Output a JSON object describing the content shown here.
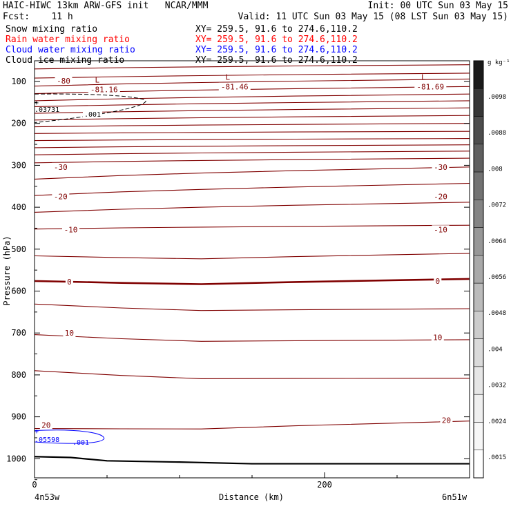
{
  "header": {
    "line1_left": "HAIC-HIWC 13km ARW-GFS init   NCAR/MMM",
    "line1_right": "Init: 00 UTC Sun 03 May 15",
    "line2_left": "Fcst:    11 h",
    "line2_right": "Valid: 11 UTC Sun 03 May 15 (08 LST Sun 03 May 15)",
    "fields": [
      {
        "name": "Snow mixing ratio",
        "xy": "XY= 259.5, 91.6 to 274.6,110.2",
        "color": "#000000"
      },
      {
        "name": "Rain water mixing ratio",
        "xy": "XY= 259.5, 91.6 to 274.6,110.2",
        "color": "#ff0000"
      },
      {
        "name": "Cloud water mixing ratio",
        "xy": "XY= 259.5, 91.6 to 274.6,110.2",
        "color": "#0000ff"
      },
      {
        "name": "Cloud ice mixing ratio",
        "xy": "XY= 259.5, 91.6 to 274.6,110.2",
        "color": "#000000"
      }
    ]
  },
  "chart_data": {
    "type": "line",
    "ylabel": "Pressure (hPa)",
    "xlabel": "Distance (km)",
    "x_range": [
      0,
      300
    ],
    "y_range": [
      1050,
      50
    ],
    "y_ticks": [
      100,
      200,
      300,
      400,
      500,
      600,
      700,
      800,
      900,
      1000
    ],
    "x_ticks": [
      0,
      200
    ],
    "x_minor_ticks": [
      50,
      100,
      150,
      250
    ],
    "endpoint_left": "4n53w",
    "endpoint_right": "6n51w",
    "isotherm_color": "#800000",
    "temperature_labels": [
      {
        "text": "-80",
        "x": 20,
        "p": 98
      },
      {
        "text": "-30",
        "x": 18,
        "p": 304
      },
      {
        "text": "-30",
        "x": 280,
        "p": 304
      },
      {
        "text": "-20",
        "x": 18,
        "p": 374
      },
      {
        "text": "-20",
        "x": 280,
        "p": 374
      },
      {
        "text": "-10",
        "x": 25,
        "p": 453
      },
      {
        "text": "-10",
        "x": 280,
        "p": 453
      },
      {
        "text": "0",
        "x": 24,
        "p": 578
      },
      {
        "text": "0",
        "x": 278,
        "p": 576
      },
      {
        "text": "10",
        "x": 24,
        "p": 700
      },
      {
        "text": "10",
        "x": 278,
        "p": 710
      },
      {
        "text": "20",
        "x": 8,
        "p": 920
      },
      {
        "text": "20",
        "x": 284,
        "p": 908
      }
    ],
    "minima": [
      {
        "text": "-81.16",
        "x": 48,
        "p": 117
      },
      {
        "text": "-81.46",
        "x": 138,
        "p": 111
      },
      {
        "text": "-81.69",
        "x": 273,
        "p": 111
      }
    ],
    "isotherms_p_left": [
      70,
      92,
      111,
      129,
      146,
      160,
      176,
      192,
      208,
      224,
      241,
      258,
      275,
      294,
      333,
      372,
      412,
      452,
      516,
      576,
      631,
      704,
      790,
      928
    ],
    "isotherms_p_right": [
      60,
      80,
      94,
      112,
      130,
      146,
      163,
      181,
      200,
      219,
      236,
      251,
      266,
      283,
      304,
      343,
      388,
      443,
      510,
      571,
      642,
      716,
      808,
      910
    ],
    "cloud_ice_contour": {
      "label": ".001",
      "extreme_label": ".03731"
    },
    "cloud_water_contour": {
      "label": ".001",
      "extreme_label": ".05598"
    },
    "colorbar": {
      "unit": "g kg⁻¹",
      "labels": [
        ".0098",
        ".0088",
        ".008",
        ".0072",
        ".0064",
        ".0056",
        ".0048",
        ".004",
        ".0032",
        ".0024",
        ".0015"
      ],
      "colors": [
        "#1a1a1a",
        "#363636",
        "#4d4d4d",
        "#5f5f5f",
        "#727272",
        "#848484",
        "#979797",
        "#a9a9a9",
        "#bbbbbb",
        "#cccccc",
        "#dadada",
        "#e6e6e6",
        "#efefef",
        "#f7f7f7",
        "#ffffff"
      ]
    }
  }
}
